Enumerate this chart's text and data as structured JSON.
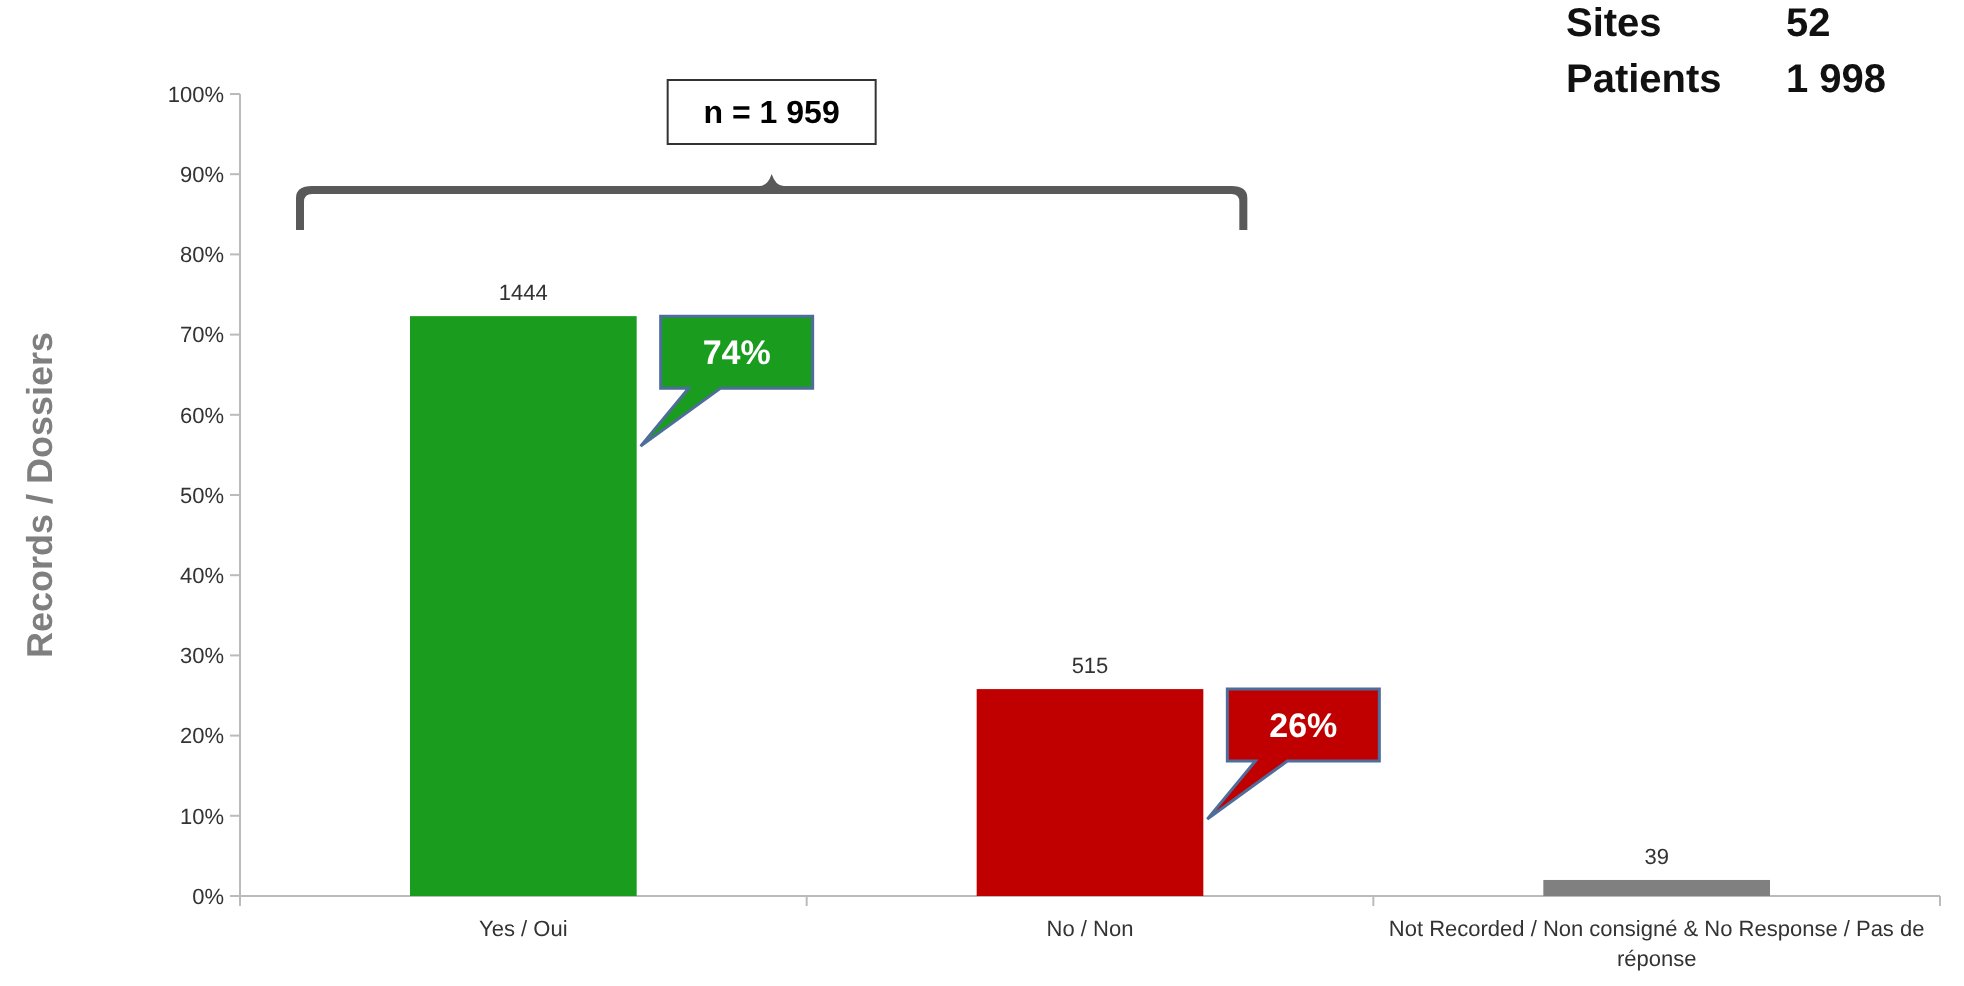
{
  "chart_data": {
    "type": "bar",
    "ylabel": "Records / Dossiers",
    "categories": [
      "Yes / Oui",
      "No / Non",
      "Not Recorded / Non consigné & No Response / Pas de réponse"
    ],
    "values": [
      72.3,
      25.8,
      2.0
    ],
    "colors": [
      "#1a9c1f",
      "#c00000",
      "#808080"
    ],
    "ylim": [
      0,
      100
    ],
    "yticks": [
      {
        "value": 0,
        "label": "0%"
      },
      {
        "value": 10,
        "label": "10%"
      },
      {
        "value": 20,
        "label": "20%"
      },
      {
        "value": 30,
        "label": "30%"
      },
      {
        "value": 40,
        "label": "40%"
      },
      {
        "value": 50,
        "label": "50%"
      },
      {
        "value": 60,
        "label": "60%"
      },
      {
        "value": 70,
        "label": "70%"
      },
      {
        "value": 80,
        "label": "80%"
      },
      {
        "value": 90,
        "label": "90%"
      },
      {
        "value": 100,
        "label": "100%"
      }
    ],
    "grid": false,
    "annotations": [
      "n = 1 959",
      {
        "text": "1444",
        "x": "Yes / Oui",
        "y": 72.3
      },
      {
        "text": "515",
        "x": "No / Non",
        "y": 25.8
      },
      {
        "text": "39",
        "x": "Not Recorded / Non consigné & No Response / Pas de réponse",
        "y": 2.0
      },
      "74%",
      "26%",
      "Sites 52",
      "Patients 1 998"
    ]
  }
}
